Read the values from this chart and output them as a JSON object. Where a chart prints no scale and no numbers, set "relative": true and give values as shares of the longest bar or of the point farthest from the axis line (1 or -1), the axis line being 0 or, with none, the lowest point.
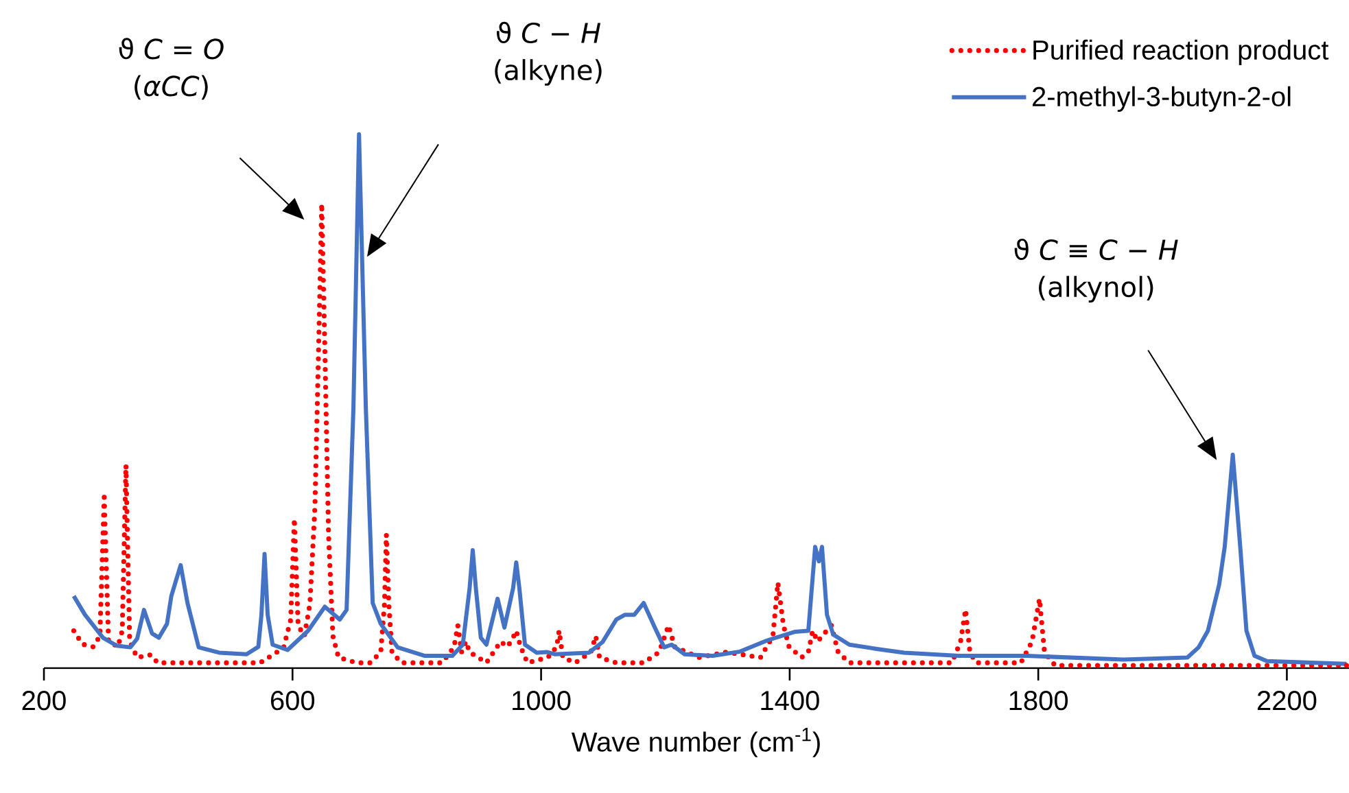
{
  "chart_data": {
    "type": "line",
    "relative": true,
    "xlabel": "Wave number (cm$^{-1}$)",
    "xlim": [
      200,
      2300
    ],
    "xticks": [
      200,
      600,
      1000,
      1400,
      1800,
      2200
    ],
    "legend": "top right",
    "series": [
      {
        "name": "Purified reaction product",
        "color": "#ff0000",
        "line_style": "dotted",
        "x": [
          248,
          262,
          279,
          290,
          297,
          304,
          319,
          326,
          332,
          338,
          350,
          372,
          383,
          438,
          493,
          548,
          575,
          586,
          597,
          603,
          609,
          619,
          628,
          636,
          642,
          647,
          652,
          658,
          665,
          674,
          703,
          725,
          742,
          748,
          751,
          755,
          760,
          775,
          841,
          860,
          866,
          872,
          879,
          885,
          912,
          935,
          945,
          952,
          960,
          967,
          978,
          1011,
          1025,
          1029,
          1035,
          1055,
          1080,
          1088,
          1094,
          1121,
          1165,
          1190,
          1205,
          1215,
          1254,
          1298,
          1353,
          1373,
          1381,
          1390,
          1399,
          1419,
          1430,
          1437,
          1445,
          1452,
          1467,
          1478,
          1496,
          1661,
          1675,
          1683,
          1690,
          1700,
          1772,
          1790,
          1802,
          1810,
          1827,
          2003,
          2296
        ],
        "values": [
          0.07,
          0.045,
          0.04,
          0.06,
          0.32,
          0.05,
          0.04,
          0.07,
          0.38,
          0.05,
          0.02,
          0.025,
          0.01,
          0.01,
          0.01,
          0.01,
          0.03,
          0.04,
          0.09,
          0.28,
          0.08,
          0.06,
          0.12,
          0.3,
          0.6,
          0.87,
          0.6,
          0.25,
          0.06,
          0.02,
          0.01,
          0.01,
          0.03,
          0.12,
          0.25,
          0.12,
          0.03,
          0.01,
          0.01,
          0.04,
          0.08,
          0.03,
          0.05,
          0.03,
          0.01,
          0.05,
          0.04,
          0.05,
          0.07,
          0.04,
          0.01,
          0.02,
          0.04,
          0.07,
          0.02,
          0.01,
          0.03,
          0.06,
          0.02,
          0.01,
          0.01,
          0.03,
          0.08,
          0.04,
          0.02,
          0.03,
          0.02,
          0.06,
          0.16,
          0.08,
          0.04,
          0.02,
          0.03,
          0.07,
          0.05,
          0.06,
          0.08,
          0.03,
          0.01,
          0.01,
          0.05,
          0.11,
          0.03,
          0.01,
          0.01,
          0.05,
          0.13,
          0.03,
          0.005,
          0.005,
          0.005
        ]
      },
      {
        "name": "2-methyl-3-butyn-2-ol",
        "color": "#4472c4",
        "line_style": "solid",
        "x": [
          248,
          266,
          295,
          317,
          339,
          350,
          361,
          374,
          385,
          398,
          405,
          420,
          431,
          449,
          482,
          526,
          545,
          550,
          555,
          560,
          568,
          592,
          625,
          652,
          676,
          687,
          698,
          707,
          718,
          729,
          742,
          769,
          813,
          857,
          874,
          885,
          890,
          895,
          903,
          912,
          930,
          941,
          955,
          960,
          965,
          974,
          993,
          1010,
          1022,
          1077,
          1099,
          1121,
          1135,
          1150,
          1165,
          1183,
          1198,
          1210,
          1231,
          1276,
          1320,
          1364,
          1408,
          1430,
          1441,
          1447,
          1452,
          1460,
          1470,
          1496,
          1540,
          1584,
          1672,
          1782,
          1937,
          2040,
          2058,
          2073,
          2091,
          2100,
          2113,
          2125,
          2135,
          2148,
          2168,
          2296
        ],
        "values": [
          0.135,
          0.1,
          0.057,
          0.042,
          0.039,
          0.055,
          0.109,
          0.065,
          0.057,
          0.083,
          0.135,
          0.193,
          0.122,
          0.039,
          0.029,
          0.026,
          0.04,
          0.1,
          0.214,
          0.1,
          0.044,
          0.034,
          0.07,
          0.115,
          0.091,
          0.109,
          0.487,
          1.0,
          0.487,
          0.122,
          0.083,
          0.039,
          0.023,
          0.023,
          0.044,
          0.15,
          0.221,
          0.15,
          0.057,
          0.044,
          0.13,
          0.076,
          0.15,
          0.198,
          0.15,
          0.044,
          0.029,
          0.03,
          0.026,
          0.029,
          0.049,
          0.091,
          0.1,
          0.1,
          0.122,
          0.076,
          0.039,
          0.044,
          0.026,
          0.023,
          0.031,
          0.052,
          0.068,
          0.07,
          0.227,
          0.2,
          0.227,
          0.1,
          0.063,
          0.044,
          0.036,
          0.029,
          0.023,
          0.023,
          0.016,
          0.02,
          0.039,
          0.07,
          0.156,
          0.227,
          0.4,
          0.227,
          0.07,
          0.023,
          0.013,
          0.008
        ]
      }
    ],
    "annotations": [
      "ϑ *C* = *O*",
      "ϑ *C* − *H*",
      "ϑ *C* ≡ *C* − *H*",
      "(*αCC*)",
      "(alkyne)",
      "(alkynol)"
    ]
  }
}
